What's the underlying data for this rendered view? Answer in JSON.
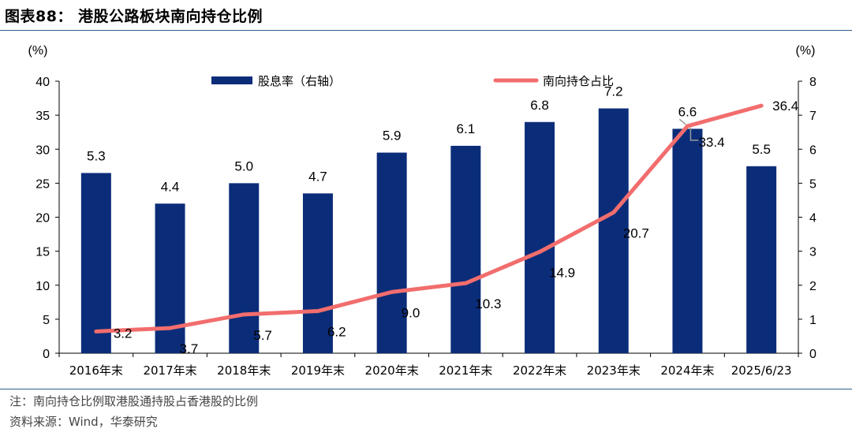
{
  "figure": {
    "title": "图表88： 港股公路板块南向持仓比例",
    "note": "注：南向持仓比例取港股通持股占香港股的比例",
    "source": "资料来源：Wind，华泰研究"
  },
  "chart_data": {
    "type": "bar+line",
    "categories": [
      "2016年末",
      "2017年末",
      "2018年末",
      "2019年末",
      "2020年末",
      "2021年末",
      "2022年末",
      "2023年末",
      "2024年末",
      "2025/6/23"
    ],
    "series": [
      {
        "name": "股息率（右轴）",
        "type": "bar",
        "axis": "right",
        "color": "#0b2d79",
        "values": [
          5.3,
          4.4,
          5.0,
          4.7,
          5.9,
          6.1,
          6.8,
          7.2,
          6.6,
          5.5
        ],
        "labels": [
          "5.3",
          "4.4",
          "5.0",
          "4.7",
          "5.9",
          "6.1",
          "6.8",
          "7.2",
          "6.6",
          "5.5"
        ]
      },
      {
        "name": "南向持仓占比",
        "type": "line",
        "axis": "left",
        "color": "#f26d6d",
        "values": [
          3.2,
          3.7,
          5.7,
          6.2,
          9.0,
          10.3,
          14.9,
          20.7,
          33.4,
          36.4
        ],
        "labels": [
          "3.2",
          "3.7",
          "5.7",
          "6.2",
          "9.0",
          "10.3",
          "14.9",
          "20.7",
          "33.4",
          "36.4"
        ]
      }
    ],
    "y_left": {
      "unit": "(%)",
      "range": [
        0,
        40
      ],
      "ticks": [
        "0",
        "5",
        "10",
        "15",
        "20",
        "25",
        "30",
        "35",
        "40"
      ]
    },
    "y_right": {
      "unit": "(%)",
      "range": [
        0,
        8
      ],
      "ticks": [
        "0",
        "1",
        "2",
        "3",
        "4",
        "5",
        "6",
        "7",
        "8"
      ]
    },
    "grid": false,
    "legend": "top"
  }
}
